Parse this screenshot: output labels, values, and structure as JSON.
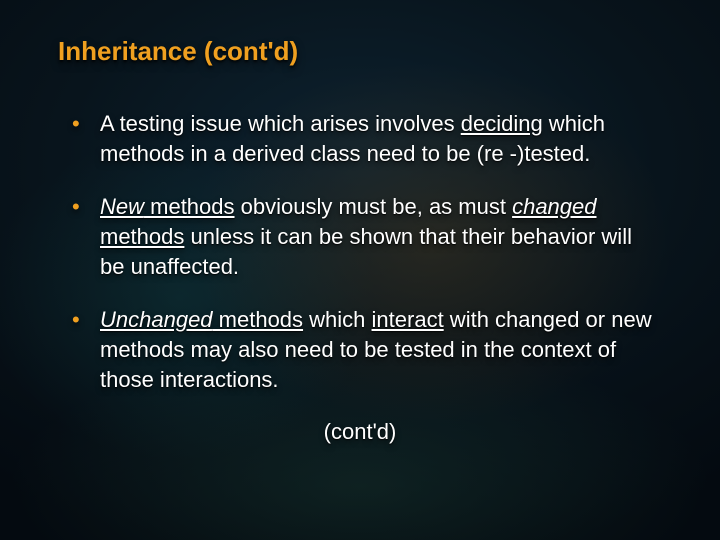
{
  "slide": {
    "title": "Inheritance (cont'd)",
    "title_color": "#f0a020",
    "bullet_color": "#f0a020",
    "text_color": "#ffffff",
    "font_family": "Verdana",
    "title_fontsize": 26,
    "body_fontsize": 22,
    "background_colors": {
      "base_dark": "#040a10",
      "mid": "#0d2230",
      "warm_glow": "rgba(90,60,20,0.35)",
      "teal_glow": "rgba(20,80,80,0.3)"
    },
    "bullets": [
      {
        "runs": [
          {
            "text": "A testing issue which arises involves "
          },
          {
            "text": "deciding",
            "underline": true
          },
          {
            "text": " which methods in a derived class need to be (re -)tested."
          }
        ]
      },
      {
        "runs": [
          {
            "text": "New",
            "underline": true,
            "italic": true
          },
          {
            "text": " methods",
            "underline": true
          },
          {
            "text": " obviously must be, as must "
          },
          {
            "text": "changed",
            "underline": true,
            "italic": true
          },
          {
            "text": " methods",
            "underline": true
          },
          {
            "text": " unless it can be shown that their behavior will be unaffected."
          }
        ]
      },
      {
        "runs": [
          {
            "text": "Unchanged",
            "underline": true,
            "italic": true
          },
          {
            "text": " methods",
            "underline": true
          },
          {
            "text": " which "
          },
          {
            "text": "interact",
            "underline": true
          },
          {
            "text": " with changed or new methods may also need to be tested in the context of those interactions."
          }
        ]
      }
    ],
    "footer": "(cont'd)"
  }
}
